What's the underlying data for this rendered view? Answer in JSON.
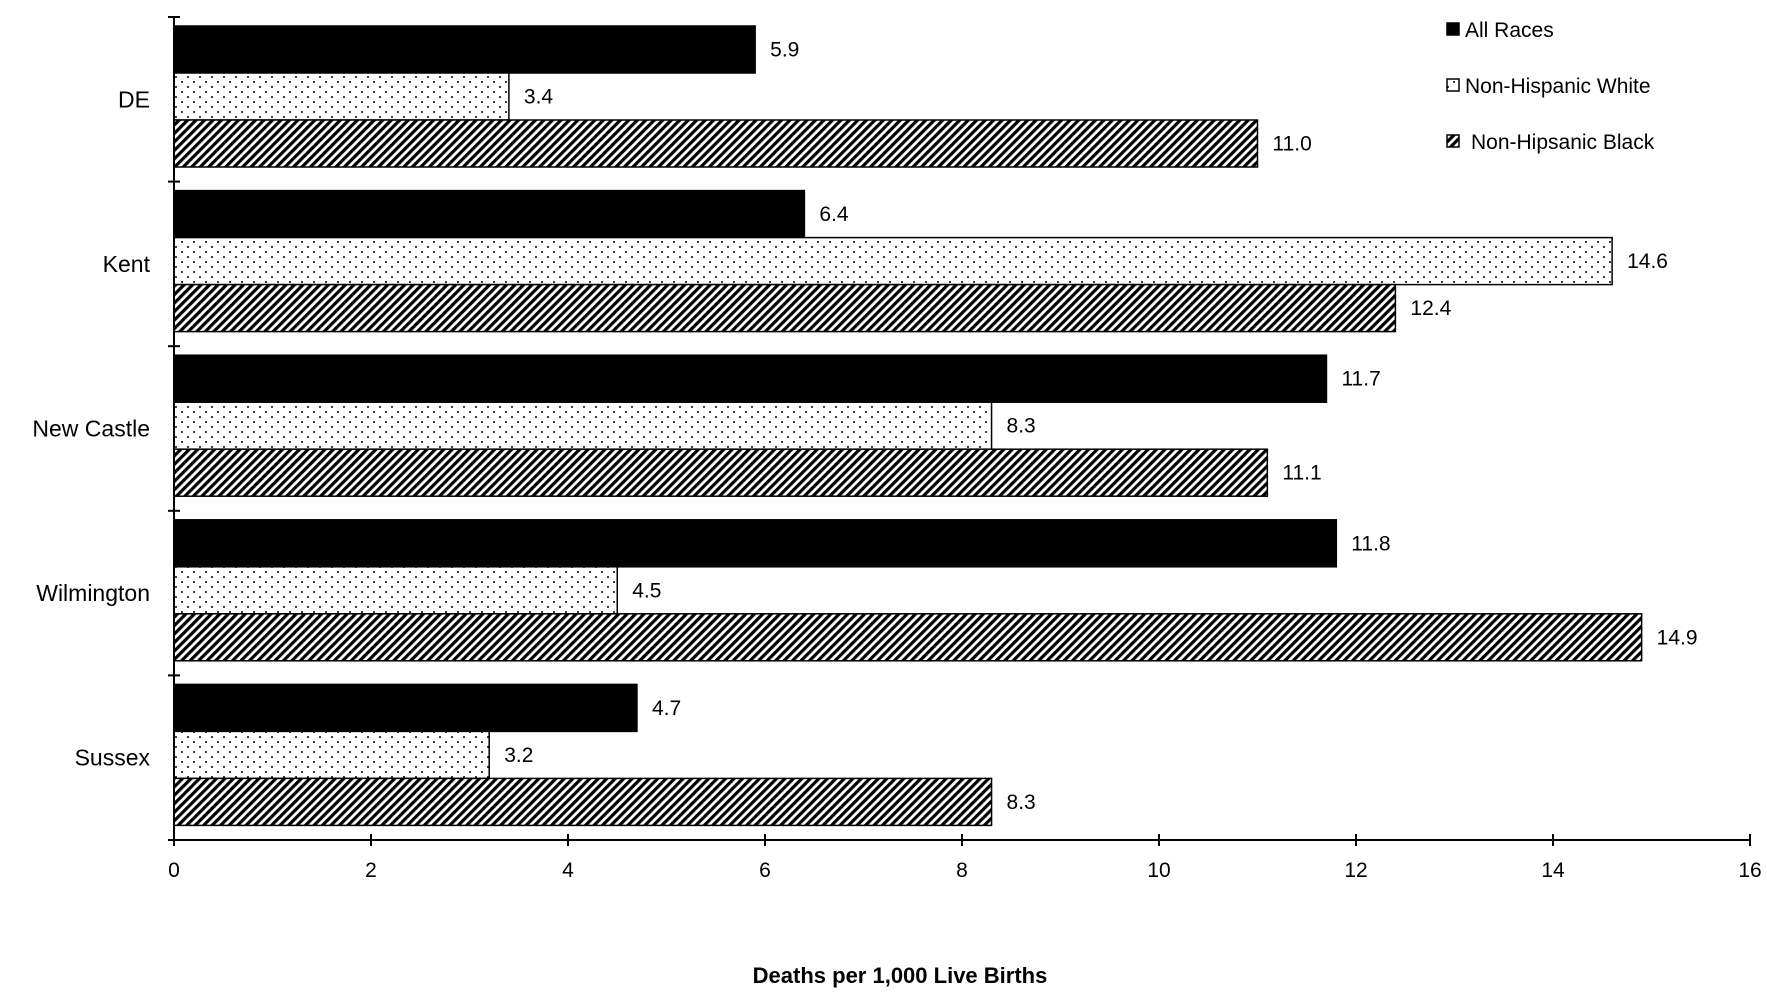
{
  "chart_data": {
    "type": "bar",
    "orientation": "horizontal",
    "categories": [
      "DE",
      "Kent",
      "New Castle",
      "Wilmington",
      "Sussex"
    ],
    "series": [
      {
        "name": "All Races",
        "values": [
          5.9,
          6.4,
          11.7,
          11.8,
          4.7
        ],
        "value_labels": [
          "5.9",
          "6.4",
          "11.7",
          "11.8",
          "4.7"
        ],
        "pattern": "solid"
      },
      {
        "name": "Non-Hispanic White",
        "values": [
          3.4,
          14.6,
          8.3,
          4.5,
          3.2
        ],
        "value_labels": [
          "3.4",
          "14.6",
          "8.3",
          "4.5",
          "3.2"
        ],
        "pattern": "dots"
      },
      {
        "name": "Non-Hipsanic Black",
        "values": [
          11.0,
          12.4,
          11.1,
          14.9,
          8.3
        ],
        "value_labels": [
          "11.0",
          "12.4",
          "11.1",
          "14.9",
          "8.3"
        ],
        "pattern": "diagonal-hatch"
      }
    ],
    "xlabel": "Deaths per 1,000 Live Births",
    "ylabel": "",
    "xlim": [
      0,
      16
    ],
    "xticks": [
      "0",
      "2",
      "4",
      "6",
      "8",
      "10",
      "12",
      "14",
      "16"
    ],
    "grid": false,
    "legend_position": "top-right"
  },
  "colors": {
    "bar_fill": "#000000",
    "bar_stroke": "#000000",
    "background": "#ffffff"
  }
}
